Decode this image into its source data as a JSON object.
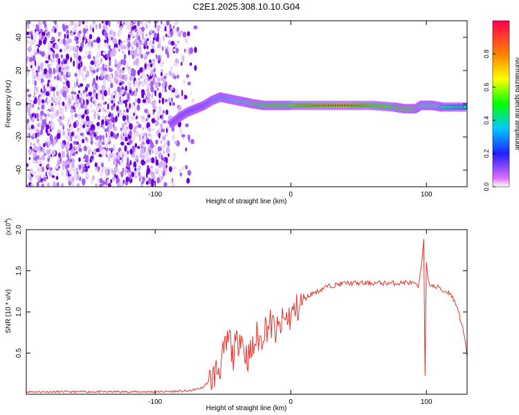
{
  "title": "C2E1.2025.308.10.10.G04",
  "chart_data": [
    {
      "type": "heatmap",
      "name": "spectrogram",
      "xlabel": "Height of straight line (km)",
      "ylabel": "Frequency (Hz)",
      "xlim": [
        -195,
        130
      ],
      "ylim": [
        -50,
        50
      ],
      "xticks": [
        -100,
        0,
        100
      ],
      "xtick_labels": [
        "-100",
        "0",
        "100"
      ],
      "yticks": [
        -40,
        -20,
        0,
        20,
        40
      ],
      "ytick_labels": [
        "-40",
        "-20",
        "0",
        "20",
        "40"
      ],
      "colorbar": {
        "label": "Normalized spectral amplitude",
        "range": [
          0,
          1
        ],
        "ticks": [
          0.0,
          0.2,
          0.4,
          0.6,
          0.8
        ],
        "tick_labels": [
          "0.0",
          "0.2",
          "0.4",
          "0.6",
          "0.8"
        ]
      },
      "noise_region_x": [
        -195,
        -68
      ],
      "ridge": {
        "x": [
          -88,
          -82,
          -76,
          -70,
          -64,
          -58,
          -52,
          -46,
          -40,
          -34,
          -28,
          -20,
          -10,
          0,
          20,
          40,
          60,
          76,
          84,
          92,
          96,
          104,
          112,
          130
        ],
        "freq": [
          -12,
          -8,
          -5,
          -3,
          -1,
          2,
          4,
          3,
          2,
          1,
          0,
          -1,
          -1,
          -1,
          -1,
          -1,
          -1,
          -2,
          -3,
          -3,
          -1,
          -1,
          -2,
          -2
        ],
        "amplitude": [
          0.3,
          0.35,
          0.35,
          0.4,
          0.4,
          0.5,
          0.55,
          0.55,
          0.7,
          0.75,
          0.8,
          0.85,
          0.9,
          0.8,
          0.95,
          1.0,
          0.85,
          0.8,
          0.95,
          0.85,
          0.7,
          0.75,
          0.55,
          0.45
        ]
      }
    },
    {
      "type": "line",
      "name": "snr",
      "xlabel": "Height of straight line (km)",
      "ylabel": "SNR (10 * v/v)",
      "scale_label": "(x10",
      "scale_exp": "4",
      "scale_close": ")",
      "xlim": [
        -195,
        130
      ],
      "ylim": [
        0,
        2.0
      ],
      "xticks": [
        -100,
        0,
        100
      ],
      "xtick_labels": [
        "-100",
        "0",
        "100"
      ],
      "yticks": [
        0.5,
        1.0,
        1.5,
        2.0
      ],
      "ytick_labels": [
        "0.5",
        "1.0",
        "1.5",
        "2.0"
      ],
      "series": [
        {
          "name": "SNR",
          "color": "#e8302a",
          "x": [
            -195,
            -150,
            -100,
            -75,
            -65,
            -58,
            -52,
            -48,
            -45,
            -43,
            -40,
            -37,
            -34,
            -31,
            -28,
            -25,
            -22,
            -20,
            -15,
            -10,
            -5,
            0,
            5,
            10,
            15,
            20,
            25,
            30,
            40,
            50,
            60,
            70,
            80,
            85,
            90,
            94,
            96,
            97,
            98,
            99,
            100,
            101,
            103,
            106,
            110,
            112,
            115,
            118,
            120,
            123,
            126,
            128,
            130
          ],
          "y": [
            0.03,
            0.03,
            0.03,
            0.04,
            0.08,
            0.2,
            0.35,
            0.55,
            0.7,
            0.45,
            0.6,
            0.75,
            0.5,
            0.45,
            0.55,
            0.7,
            0.65,
            0.8,
            0.85,
            0.75,
            0.9,
            0.95,
            1.05,
            1.15,
            1.22,
            1.25,
            1.3,
            1.32,
            1.35,
            1.35,
            1.35,
            1.35,
            1.35,
            1.36,
            1.35,
            1.3,
            1.5,
            1.7,
            1.9,
            0.25,
            1.6,
            1.4,
            1.33,
            1.3,
            1.3,
            1.25,
            1.25,
            1.22,
            1.15,
            1.05,
            0.85,
            0.7,
            0.45
          ]
        }
      ]
    }
  ]
}
